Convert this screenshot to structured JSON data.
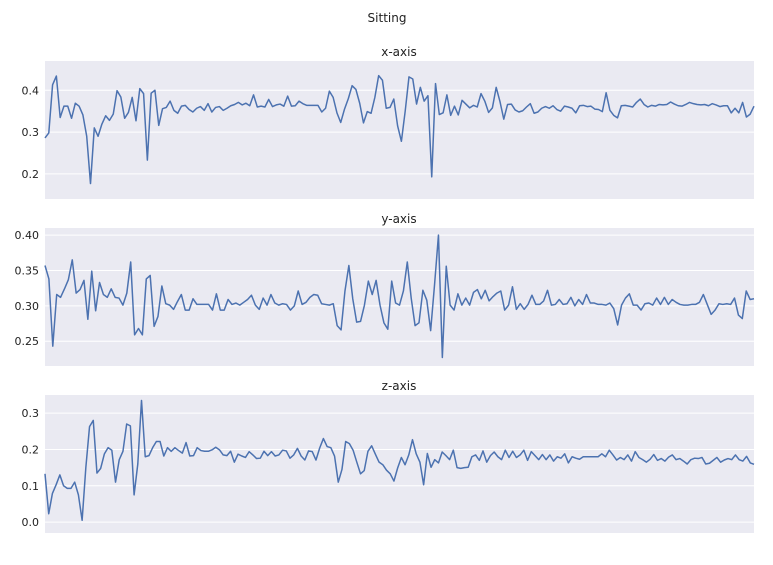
{
  "figure": {
    "suptitle": "Sitting"
  },
  "style": {
    "panel_bg": "#eaeaf2",
    "grid": "#ffffff",
    "line": "#4c72b0"
  },
  "chart_data": [
    {
      "type": "line",
      "title": "x-axis",
      "xlabel": "",
      "ylabel": "",
      "grid": true,
      "ylim": [
        0.14,
        0.47
      ],
      "yticks": [
        0.2,
        0.3,
        0.4
      ],
      "ytick_labels": [
        "0.2",
        "0.3",
        "0.4"
      ],
      "series": [
        {
          "values": [
            0.286,
            0.298,
            0.413,
            0.434,
            0.335,
            0.362,
            0.362,
            0.333,
            0.369,
            0.362,
            0.341,
            0.29,
            0.177,
            0.31,
            0.29,
            0.319,
            0.339,
            0.328,
            0.343,
            0.399,
            0.384,
            0.333,
            0.347,
            0.383,
            0.327,
            0.404,
            0.392,
            0.233,
            0.393,
            0.4,
            0.316,
            0.356,
            0.359,
            0.374,
            0.352,
            0.345,
            0.362,
            0.364,
            0.354,
            0.348,
            0.357,
            0.361,
            0.352,
            0.368,
            0.348,
            0.359,
            0.361,
            0.352,
            0.357,
            0.363,
            0.366,
            0.371,
            0.365,
            0.369,
            0.363,
            0.389,
            0.36,
            0.362,
            0.36,
            0.378,
            0.361,
            0.365,
            0.367,
            0.362,
            0.386,
            0.362,
            0.363,
            0.374,
            0.368,
            0.364,
            0.364,
            0.364,
            0.364,
            0.348,
            0.357,
            0.398,
            0.383,
            0.346,
            0.323,
            0.355,
            0.38,
            0.411,
            0.402,
            0.369,
            0.322,
            0.349,
            0.345,
            0.383,
            0.435,
            0.424,
            0.357,
            0.359,
            0.379,
            0.315,
            0.278,
            0.35,
            0.432,
            0.427,
            0.367,
            0.407,
            0.374,
            0.387,
            0.193,
            0.416,
            0.342,
            0.346,
            0.389,
            0.34,
            0.362,
            0.341,
            0.376,
            0.367,
            0.358,
            0.364,
            0.36,
            0.392,
            0.374,
            0.347,
            0.358,
            0.407,
            0.373,
            0.331,
            0.366,
            0.367,
            0.353,
            0.348,
            0.351,
            0.36,
            0.368,
            0.345,
            0.348,
            0.357,
            0.361,
            0.357,
            0.363,
            0.354,
            0.35,
            0.362,
            0.36,
            0.357,
            0.346,
            0.363,
            0.364,
            0.361,
            0.362,
            0.355,
            0.354,
            0.349,
            0.394,
            0.352,
            0.34,
            0.334,
            0.363,
            0.364,
            0.362,
            0.36,
            0.371,
            0.379,
            0.366,
            0.36,
            0.364,
            0.362,
            0.366,
            0.365,
            0.366,
            0.372,
            0.367,
            0.363,
            0.362,
            0.366,
            0.371,
            0.368,
            0.366,
            0.365,
            0.366,
            0.363,
            0.368,
            0.365,
            0.361,
            0.363,
            0.363,
            0.346,
            0.357,
            0.346,
            0.371,
            0.336,
            0.343,
            0.362
          ]
        }
      ]
    },
    {
      "type": "line",
      "title": "y-axis",
      "xlabel": "",
      "ylabel": "",
      "grid": true,
      "ylim": [
        0.215,
        0.41
      ],
      "yticks": [
        0.25,
        0.3,
        0.35,
        0.4
      ],
      "ytick_labels": [
        "0.25",
        "0.30",
        "0.35",
        "0.40"
      ],
      "series": [
        {
          "values": [
            0.357,
            0.338,
            0.243,
            0.316,
            0.312,
            0.324,
            0.337,
            0.365,
            0.318,
            0.323,
            0.336,
            0.281,
            0.349,
            0.293,
            0.333,
            0.316,
            0.312,
            0.324,
            0.312,
            0.311,
            0.301,
            0.318,
            0.362,
            0.259,
            0.268,
            0.259,
            0.338,
            0.343,
            0.271,
            0.285,
            0.328,
            0.303,
            0.301,
            0.295,
            0.306,
            0.316,
            0.294,
            0.294,
            0.31,
            0.302,
            0.302,
            0.302,
            0.302,
            0.294,
            0.317,
            0.294,
            0.294,
            0.309,
            0.302,
            0.304,
            0.301,
            0.305,
            0.309,
            0.315,
            0.301,
            0.295,
            0.311,
            0.301,
            0.316,
            0.304,
            0.301,
            0.303,
            0.302,
            0.294,
            0.3,
            0.321,
            0.302,
            0.305,
            0.312,
            0.316,
            0.315,
            0.303,
            0.302,
            0.301,
            0.303,
            0.272,
            0.266,
            0.321,
            0.357,
            0.31,
            0.277,
            0.278,
            0.301,
            0.335,
            0.316,
            0.336,
            0.301,
            0.276,
            0.267,
            0.335,
            0.304,
            0.301,
            0.321,
            0.362,
            0.311,
            0.272,
            0.276,
            0.322,
            0.308,
            0.265,
            0.33,
            0.4,
            0.227,
            0.356,
            0.301,
            0.294,
            0.317,
            0.301,
            0.311,
            0.301,
            0.319,
            0.323,
            0.31,
            0.322,
            0.307,
            0.313,
            0.318,
            0.321,
            0.294,
            0.301,
            0.327,
            0.295,
            0.303,
            0.295,
            0.302,
            0.315,
            0.302,
            0.302,
            0.307,
            0.322,
            0.301,
            0.302,
            0.309,
            0.302,
            0.303,
            0.312,
            0.3,
            0.309,
            0.302,
            0.316,
            0.304,
            0.304,
            0.302,
            0.302,
            0.301,
            0.304,
            0.296,
            0.273,
            0.301,
            0.311,
            0.317,
            0.301,
            0.301,
            0.294,
            0.303,
            0.304,
            0.301,
            0.311,
            0.302,
            0.312,
            0.302,
            0.309,
            0.305,
            0.302,
            0.301,
            0.301,
            0.302,
            0.302,
            0.305,
            0.316,
            0.302,
            0.288,
            0.294,
            0.303,
            0.302,
            0.303,
            0.302,
            0.311,
            0.287,
            0.282,
            0.321,
            0.309,
            0.31
          ]
        }
      ]
    },
    {
      "type": "line",
      "title": "z-axis",
      "xlabel": "",
      "ylabel": "",
      "grid": true,
      "ylim": [
        -0.03,
        0.35
      ],
      "yticks": [
        0.0,
        0.1,
        0.2,
        0.3
      ],
      "ytick_labels": [
        "0.0",
        "0.1",
        "0.2",
        "0.3"
      ],
      "series": [
        {
          "values": [
            0.133,
            0.023,
            0.079,
            0.103,
            0.13,
            0.1,
            0.093,
            0.093,
            0.11,
            0.075,
            0.005,
            0.15,
            0.263,
            0.28,
            0.135,
            0.148,
            0.188,
            0.205,
            0.198,
            0.11,
            0.172,
            0.195,
            0.27,
            0.265,
            0.075,
            0.16,
            0.335,
            0.18,
            0.183,
            0.205,
            0.222,
            0.222,
            0.182,
            0.205,
            0.195,
            0.205,
            0.197,
            0.19,
            0.219,
            0.182,
            0.183,
            0.205,
            0.197,
            0.195,
            0.195,
            0.199,
            0.206,
            0.199,
            0.185,
            0.183,
            0.195,
            0.165,
            0.187,
            0.182,
            0.178,
            0.194,
            0.185,
            0.175,
            0.176,
            0.195,
            0.183,
            0.194,
            0.182,
            0.185,
            0.198,
            0.196,
            0.176,
            0.185,
            0.203,
            0.182,
            0.171,
            0.196,
            0.194,
            0.171,
            0.204,
            0.23,
            0.208,
            0.205,
            0.182,
            0.11,
            0.145,
            0.222,
            0.216,
            0.198,
            0.165,
            0.133,
            0.142,
            0.195,
            0.21,
            0.187,
            0.165,
            0.158,
            0.143,
            0.133,
            0.113,
            0.149,
            0.178,
            0.158,
            0.185,
            0.227,
            0.188,
            0.165,
            0.103,
            0.189,
            0.151,
            0.172,
            0.163,
            0.193,
            0.183,
            0.172,
            0.198,
            0.15,
            0.148,
            0.15,
            0.151,
            0.18,
            0.185,
            0.17,
            0.196,
            0.165,
            0.183,
            0.193,
            0.18,
            0.172,
            0.198,
            0.178,
            0.195,
            0.178,
            0.185,
            0.198,
            0.17,
            0.194,
            0.183,
            0.172,
            0.186,
            0.172,
            0.185,
            0.168,
            0.18,
            0.176,
            0.188,
            0.163,
            0.18,
            0.176,
            0.173,
            0.18,
            0.18,
            0.18,
            0.18,
            0.18,
            0.188,
            0.18,
            0.198,
            0.185,
            0.171,
            0.178,
            0.172,
            0.185,
            0.168,
            0.194,
            0.178,
            0.172,
            0.165,
            0.173,
            0.186,
            0.17,
            0.175,
            0.168,
            0.179,
            0.185,
            0.172,
            0.175,
            0.168,
            0.16,
            0.172,
            0.176,
            0.175,
            0.178,
            0.16,
            0.162,
            0.17,
            0.178,
            0.165,
            0.171,
            0.175,
            0.172,
            0.185,
            0.172,
            0.168,
            0.181,
            0.163,
            0.159
          ]
        }
      ]
    }
  ]
}
